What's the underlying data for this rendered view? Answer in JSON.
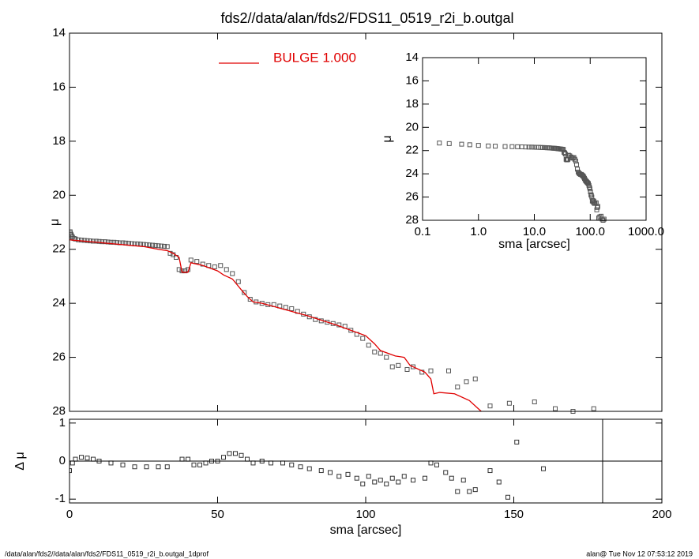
{
  "title": "fds2//data/alan/fds2/FDS11_0519_r2i_b.outgal",
  "footer": {
    "left": "/data/alan/fds2//data/alan/fds2/FDS11_0519_r2i_b.outgal_1dprof",
    "right": "alan@  Tue Nov 12 07:53:12 2019"
  },
  "chart_data": [
    {
      "type": "scatter",
      "ylabel": "μ",
      "xlim": [
        0,
        200
      ],
      "xticks": [
        0,
        50,
        100,
        150,
        200
      ],
      "ylim": [
        28,
        14
      ],
      "yticks": [
        14,
        16,
        18,
        20,
        22,
        24,
        26,
        28
      ],
      "series": [
        {
          "color": "#555555",
          "x": [
            0.2,
            0.3,
            0.5,
            0.7,
            1,
            1.5,
            2,
            3,
            4,
            5,
            6,
            7,
            8,
            9,
            10,
            11,
            12,
            13,
            14,
            15,
            16,
            17,
            18,
            19,
            20,
            21,
            22,
            23,
            24,
            25,
            26,
            27,
            28,
            29,
            30,
            31,
            32,
            33,
            34,
            35,
            36,
            37,
            38,
            39,
            40,
            41,
            43,
            45,
            47,
            49,
            51,
            53,
            55,
            57,
            59,
            61,
            63,
            65,
            67,
            69,
            71,
            73,
            75,
            77,
            79,
            81,
            83,
            85,
            87,
            89,
            91,
            93,
            95,
            97,
            99,
            101,
            103,
            105,
            107,
            109,
            111,
            114,
            116,
            119,
            122,
            128,
            131,
            134,
            137,
            142,
            148.5,
            157,
            164,
            170,
            177
          ],
          "values": [
            21.35,
            21.4,
            21.45,
            21.5,
            21.55,
            21.6,
            21.62,
            21.65,
            21.66,
            21.67,
            21.68,
            21.69,
            21.7,
            21.7,
            21.71,
            21.72,
            21.72,
            21.73,
            21.74,
            21.74,
            21.75,
            21.76,
            21.76,
            21.77,
            21.78,
            21.79,
            21.8,
            21.8,
            21.81,
            21.82,
            21.83,
            21.84,
            21.85,
            21.86,
            21.87,
            21.88,
            21.89,
            21.9,
            22.15,
            22.2,
            22.3,
            22.75,
            22.8,
            22.8,
            22.75,
            22.4,
            22.45,
            22.55,
            22.6,
            22.65,
            22.6,
            22.75,
            22.9,
            23.2,
            23.6,
            23.85,
            23.95,
            24.0,
            24.05,
            24.05,
            24.1,
            24.15,
            24.2,
            24.3,
            24.4,
            24.5,
            24.6,
            24.65,
            24.7,
            24.75,
            24.8,
            24.85,
            25.0,
            25.15,
            25.3,
            25.55,
            25.8,
            25.85,
            26.0,
            26.35,
            26.3,
            26.45,
            26.35,
            26.55,
            26.5,
            26.5,
            27.1,
            26.9,
            26.8,
            27.8,
            27.7,
            27.65,
            27.9,
            28.0,
            27.9
          ]
        },
        {
          "name": "BULGE  1.000",
          "color": "#e00000",
          "x": [
            0,
            5,
            10,
            15,
            20,
            25,
            30,
            33,
            35,
            37,
            38,
            40,
            41,
            45,
            50,
            52,
            55,
            58,
            60,
            62,
            65,
            70,
            80,
            90,
            95,
            100,
            103,
            105,
            110,
            113,
            115,
            120,
            122,
            123,
            125,
            130,
            135,
            139
          ],
          "values": [
            21.65,
            21.7,
            21.75,
            21.8,
            21.85,
            21.9,
            22.0,
            22.05,
            22.15,
            22.3,
            22.85,
            22.85,
            22.5,
            22.6,
            22.8,
            22.95,
            23.1,
            23.5,
            23.75,
            23.95,
            24.0,
            24.15,
            24.45,
            24.8,
            25.0,
            25.2,
            25.5,
            25.75,
            25.95,
            26.0,
            26.3,
            26.55,
            26.8,
            27.35,
            27.3,
            27.35,
            27.6,
            28.0
          ]
        }
      ]
    },
    {
      "type": "scatter",
      "xscale": "log",
      "xlabel": "sma [arcsec]",
      "ylabel": "μ",
      "xlim": [
        0.1,
        1000
      ],
      "xticks": [
        {
          "value": 0.1,
          "label": "0.1"
        },
        {
          "value": 1,
          "label": "1.0"
        },
        {
          "value": 10,
          "label": "10.0"
        },
        {
          "value": 100,
          "label": "100.0"
        },
        {
          "value": 1000,
          "label": "1000.0"
        }
      ],
      "ylim": [
        28,
        14
      ],
      "yticks": [
        14,
        16,
        18,
        20,
        22,
        24,
        26,
        28
      ]
    },
    {
      "type": "scatter",
      "xlabel": "sma [arcsec]",
      "ylabel": "Δ μ",
      "color": "#333333",
      "xlim": [
        0,
        200
      ],
      "xticks": [
        0,
        50,
        100,
        150,
        200
      ],
      "ylim": [
        -1.1,
        1.1
      ],
      "yticks": [
        -1,
        0,
        1
      ],
      "hline": 0,
      "vline": 180,
      "x": [
        0,
        1,
        2,
        4,
        6,
        8,
        10,
        14,
        18,
        22,
        26,
        30,
        33,
        38,
        40,
        42,
        44,
        46,
        48,
        50,
        52,
        54,
        56,
        58,
        60,
        62,
        65,
        68,
        72,
        75,
        78,
        81,
        85,
        88,
        91,
        94,
        97,
        99,
        101,
        103,
        105,
        107,
        109,
        111,
        113,
        116,
        120,
        122,
        124,
        127,
        129,
        131,
        133,
        135,
        137,
        142,
        145,
        148,
        151,
        160
      ],
      "values": [
        -0.25,
        -0.05,
        0.05,
        0.1,
        0.08,
        0.05,
        0.0,
        -0.05,
        -0.1,
        -0.15,
        -0.15,
        -0.15,
        -0.15,
        0.05,
        0.05,
        -0.1,
        -0.1,
        -0.05,
        0.0,
        0.0,
        0.1,
        0.2,
        0.2,
        0.15,
        0.05,
        -0.05,
        0.0,
        -0.05,
        -0.05,
        -0.1,
        -0.15,
        -0.2,
        -0.25,
        -0.3,
        -0.4,
        -0.35,
        -0.45,
        -0.6,
        -0.4,
        -0.55,
        -0.5,
        -0.6,
        -0.45,
        -0.55,
        -0.4,
        -0.5,
        -0.45,
        -0.05,
        -0.1,
        -0.3,
        -0.45,
        -0.8,
        -0.5,
        -0.8,
        -0.75,
        -0.25,
        -0.55,
        -0.95,
        0.5,
        -0.2
      ]
    }
  ]
}
